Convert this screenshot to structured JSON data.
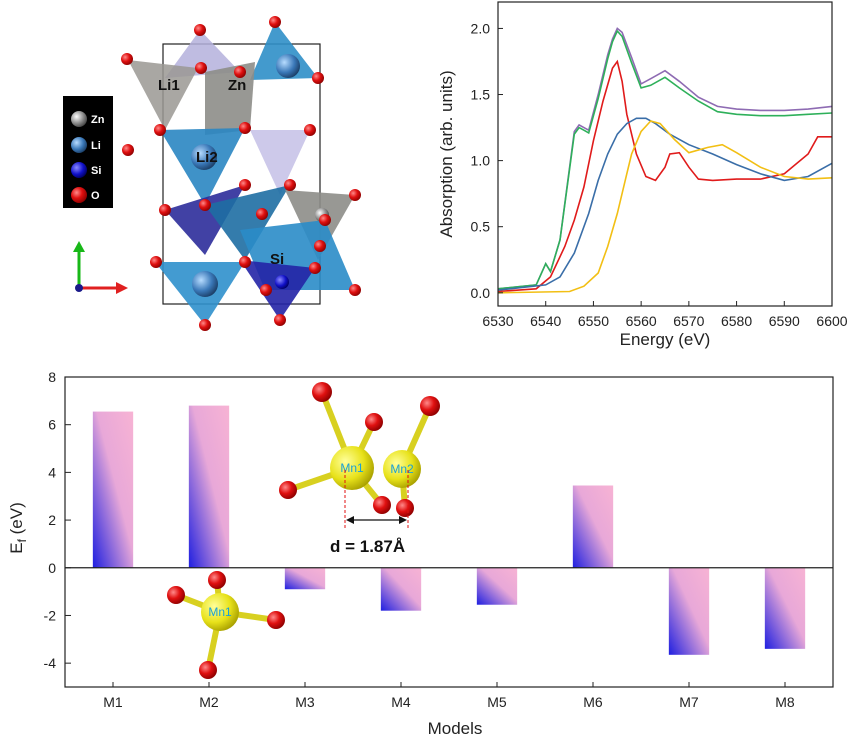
{
  "structure": {
    "legend": [
      {
        "label": "Zn",
        "color": "#8c8c8c"
      },
      {
        "label": "Li",
        "color": "#3a78b8"
      },
      {
        "label": "Si",
        "color": "#1010c8"
      },
      {
        "label": "O",
        "color": "#e01010"
      }
    ],
    "site_labels": [
      "Li1",
      "Zn",
      "Li2",
      "Si"
    ]
  },
  "chart_data": [
    {
      "type": "line",
      "xlabel": "Energy (eV)",
      "ylabel": "Absorption (arb. units)",
      "xlim": [
        6530,
        6600
      ],
      "ylim": [
        -0.1,
        2.2
      ],
      "xticks": [
        "6530",
        "6540",
        "6550",
        "6560",
        "6570",
        "6580",
        "6590",
        "6600"
      ],
      "yticks": [
        "0.0",
        "0.5",
        "1.0",
        "1.5",
        "2.0"
      ],
      "series": [
        {
          "color": "#8e6bb3",
          "x": [
            6530,
            6538,
            6540,
            6541,
            6543,
            6546,
            6547,
            6548,
            6549,
            6551,
            6553,
            6554,
            6555,
            6556,
            6558,
            6560,
            6562,
            6565,
            6568,
            6572,
            6576,
            6580,
            6585,
            6590,
            6595,
            6600
          ],
          "y": [
            0.03,
            0.06,
            0.22,
            0.16,
            0.4,
            1.22,
            1.27,
            1.25,
            1.23,
            1.5,
            1.8,
            1.92,
            2.0,
            1.97,
            1.78,
            1.58,
            1.62,
            1.68,
            1.6,
            1.48,
            1.41,
            1.39,
            1.38,
            1.38,
            1.39,
            1.41
          ]
        },
        {
          "color": "#2eb05a",
          "x": [
            6530,
            6538,
            6540,
            6541,
            6543,
            6546,
            6547,
            6548,
            6549,
            6551,
            6553,
            6554,
            6555,
            6556,
            6558,
            6560,
            6562,
            6565,
            6568,
            6572,
            6576,
            6580,
            6585,
            6590,
            6595,
            6600
          ],
          "y": [
            0.03,
            0.06,
            0.22,
            0.16,
            0.4,
            1.2,
            1.25,
            1.23,
            1.21,
            1.47,
            1.77,
            1.9,
            1.98,
            1.94,
            1.74,
            1.55,
            1.57,
            1.63,
            1.55,
            1.45,
            1.37,
            1.35,
            1.34,
            1.34,
            1.35,
            1.36
          ]
        },
        {
          "color": "#e01b1b",
          "x": [
            6530,
            6538,
            6541,
            6544,
            6546,
            6548,
            6550,
            6552,
            6554,
            6555,
            6556,
            6557,
            6559,
            6561,
            6563,
            6565,
            6566,
            6568,
            6570,
            6572,
            6575,
            6580,
            6585,
            6590,
            6595,
            6597,
            6600
          ],
          "y": [
            0.01,
            0.03,
            0.12,
            0.35,
            0.55,
            0.8,
            1.15,
            1.45,
            1.7,
            1.75,
            1.6,
            1.35,
            1.05,
            0.88,
            0.85,
            0.95,
            1.05,
            1.06,
            0.95,
            0.86,
            0.85,
            0.86,
            0.86,
            0.9,
            1.05,
            1.18,
            1.18
          ]
        },
        {
          "color": "#3a6ea8",
          "x": [
            6530,
            6540,
            6543,
            6546,
            6549,
            6551,
            6553,
            6555,
            6557,
            6559,
            6561,
            6563,
            6566,
            6570,
            6575,
            6580,
            6585,
            6590,
            6595,
            6600
          ],
          "y": [
            0.02,
            0.06,
            0.12,
            0.3,
            0.6,
            0.85,
            1.05,
            1.2,
            1.28,
            1.32,
            1.32,
            1.28,
            1.2,
            1.12,
            1.05,
            0.97,
            0.9,
            0.85,
            0.88,
            0.98
          ]
        },
        {
          "color": "#f2bf14",
          "x": [
            6530,
            6545,
            6548,
            6551,
            6553,
            6555,
            6557,
            6558,
            6560,
            6562,
            6564,
            6567,
            6570,
            6574,
            6577,
            6580,
            6585,
            6590,
            6595,
            6600
          ],
          "y": [
            0.0,
            0.01,
            0.05,
            0.15,
            0.35,
            0.6,
            0.9,
            1.05,
            1.22,
            1.3,
            1.28,
            1.16,
            1.06,
            1.1,
            1.12,
            1.06,
            0.95,
            0.88,
            0.86,
            0.87
          ]
        }
      ]
    },
    {
      "type": "bar",
      "xlabel": "Models",
      "ylabel": "E_f (eV)",
      "ylim": [
        -5,
        8
      ],
      "yticks": [
        "-4",
        "-2",
        "0",
        "2",
        "4",
        "6",
        "8"
      ],
      "categories": [
        "M1",
        "M2",
        "M3",
        "M4",
        "M5",
        "M6",
        "M7",
        "M8"
      ],
      "values": [
        6.55,
        6.8,
        -0.9,
        -1.8,
        -1.55,
        3.45,
        -3.65,
        -3.4
      ]
    }
  ],
  "annotations": {
    "distance_label": "d = 1.87Å",
    "mn1_label": "Mn1",
    "mn2_label": "Mn2"
  }
}
